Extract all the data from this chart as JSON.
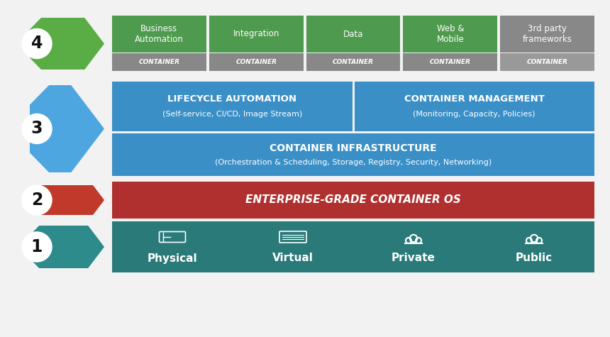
{
  "bg_color": "#f0f0f0",
  "fig_bg": "#ffffff",
  "colors": {
    "green": "#4e9a4e",
    "green_dark": "#3d7a3d",
    "blue": "#3a8fc7",
    "blue_light": "#4da6e0",
    "red": "#b03030",
    "teal": "#2a7a7a",
    "gray": "#888888",
    "gray_light": "#aaaaaa",
    "white": "#ffffff",
    "black": "#000000",
    "arrow_green": "#5aac44",
    "arrow_blue": "#4da6e0",
    "arrow_red": "#c0392b",
    "arrow_teal": "#2e8b8b",
    "circle_bg": "#ffffff",
    "circle_border": "#222222"
  },
  "layer4_tops": [
    "Business\nAutomation",
    "Integration",
    "Data",
    "Web &\nMobile",
    "3rd party\nframeworks"
  ],
  "layer4_bottoms": [
    "CONTAINER",
    "CONTAINER",
    "CONTAINER",
    "CONTAINER",
    "CONTAINER"
  ],
  "layer4_top_color": "#4e9a4e",
  "layer4_bottom_color": "#888888",
  "layer3_left_title": "LIFECYCLE AUTOMATION",
  "layer3_left_sub": "(Self-service, CI/CD, Image Stream)",
  "layer3_right_title": "CONTAINER MANAGEMENT",
  "layer3_right_sub": "(Monitoring, Capacity, Policies)",
  "layer3_infra_title": "CONTAINER INFRASTRUCTURE",
  "layer3_infra_sub": "(Orchestration & Scheduling, Storage, Registry, Security, Networking)",
  "layer2_title": "ENTERPRISE-GRADE CONTAINER OS",
  "layer1_items": [
    "Physical",
    "Virtual",
    "Private",
    "Public"
  ]
}
